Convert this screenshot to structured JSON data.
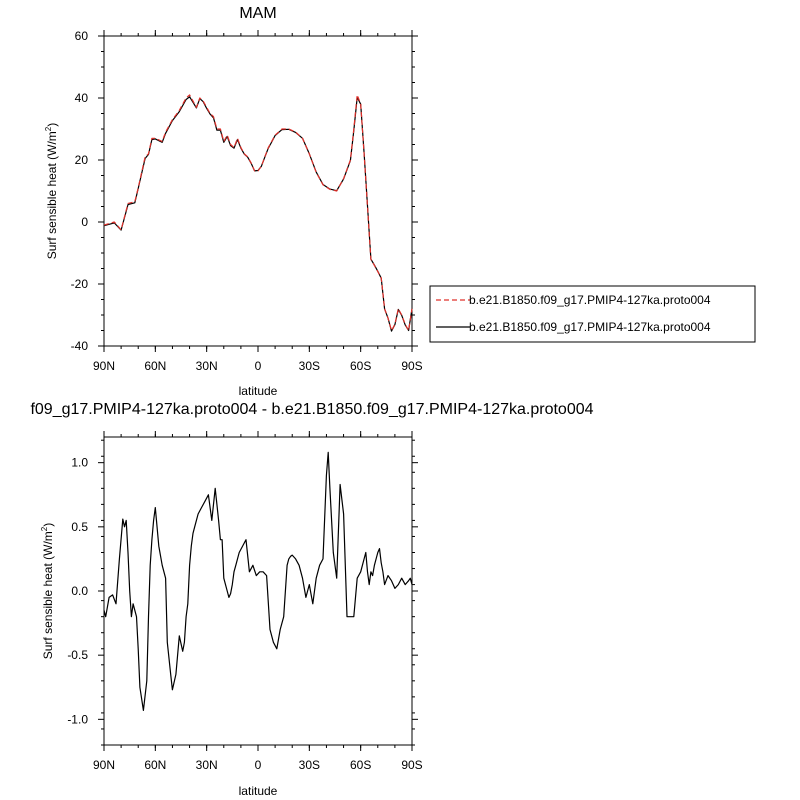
{
  "chart_data": [
    {
      "type": "line",
      "title": "MAM",
      "xlabel": "latitude",
      "ylabel": "Surf sensible heat (W/m",
      "ylabel_sup": "2",
      "ylabel_tail": ")",
      "xlim": [
        90,
        -90
      ],
      "ylim": [
        -40,
        60
      ],
      "yticks": [
        -40,
        -20,
        0,
        20,
        40,
        60
      ],
      "xticks": [
        90,
        60,
        30,
        0,
        -30,
        -60,
        -90
      ],
      "xtick_labels": [
        "90N",
        "60N",
        "30N",
        "0",
        "30S",
        "60S",
        "90S"
      ],
      "legend_position": "right",
      "series": [
        {
          "name": "b.e21.B1850.f09_g17.PMIP4-127ka.proto004",
          "color": "#e0302a",
          "dash": "dashed",
          "x": [
            90,
            84,
            80,
            76,
            72,
            70,
            66,
            64,
            62,
            60,
            56,
            54,
            50,
            46,
            42,
            40,
            38,
            36,
            34,
            32,
            30,
            28,
            26,
            24,
            22,
            20,
            18,
            16,
            14,
            12,
            10,
            8,
            6,
            4,
            2,
            0,
            -2,
            -4,
            -6,
            -8,
            -10,
            -14,
            -18,
            -22,
            -26,
            -30,
            -34,
            -38,
            -42,
            -46,
            -50,
            -54,
            -56,
            -58,
            -60,
            -62,
            -64,
            -66,
            -68,
            -70,
            -72,
            -74,
            -76,
            -78,
            -80,
            -82,
            -84,
            -86,
            -88,
            -90
          ],
          "y": [
            -1.0,
            0,
            -2.5,
            6,
            6.5,
            11,
            21,
            22,
            27,
            27,
            26,
            29,
            33,
            36,
            40,
            41,
            39,
            37,
            40,
            39,
            37,
            35,
            34,
            30,
            30,
            26,
            28,
            25,
            24,
            27,
            24,
            22,
            21,
            19,
            16.5,
            16.5,
            18,
            21,
            24,
            26,
            28,
            30,
            30,
            29,
            27,
            22,
            16,
            12,
            10.5,
            10,
            14,
            20,
            30,
            41,
            38,
            22,
            5,
            -12,
            -14,
            -16,
            -18,
            -28,
            -31,
            -35,
            -33,
            -28,
            -30,
            -33,
            -35,
            -28
          ]
        },
        {
          "name": "b.e21.B1850.f09_g17.PMIP4-127ka.proto004",
          "color": "#000000",
          "dash": "solid",
          "x": [
            90,
            84,
            80,
            76,
            72,
            70,
            66,
            64,
            62,
            60,
            56,
            54,
            50,
            46,
            42,
            40,
            38,
            36,
            34,
            32,
            30,
            28,
            26,
            24,
            22,
            20,
            18,
            16,
            14,
            12,
            10,
            8,
            6,
            4,
            2,
            0,
            -2,
            -4,
            -6,
            -8,
            -10,
            -14,
            -18,
            -22,
            -26,
            -30,
            -34,
            -38,
            -42,
            -46,
            -50,
            -54,
            -56,
            -58,
            -60,
            -62,
            -64,
            -66,
            -68,
            -70,
            -72,
            -74,
            -76,
            -78,
            -80,
            -82,
            -84,
            -86,
            -88,
            -90
          ],
          "y": [
            -1.2,
            -0.3,
            -2.6,
            5.6,
            6.2,
            10.8,
            20.5,
            21.8,
            26.6,
            26.8,
            25.7,
            28.6,
            32.7,
            35.6,
            39.5,
            40.4,
            38.6,
            36.8,
            39.8,
            38.8,
            36.6,
            34.8,
            33.6,
            29.6,
            29.6,
            25.7,
            27.6,
            24.6,
            23.8,
            26.6,
            23.8,
            21.9,
            20.9,
            18.9,
            16.5,
            16.6,
            18.0,
            20.9,
            23.8,
            25.8,
            27.9,
            29.8,
            29.9,
            28.9,
            27.0,
            22.0,
            16.1,
            12.1,
            10.6,
            10.1,
            13.9,
            19.8,
            29.5,
            40.2,
            38.0,
            22.2,
            5.2,
            -12.0,
            -13.9,
            -15.9,
            -18.1,
            -28.1,
            -31.0,
            -35.2,
            -33.1,
            -28.2,
            -30.1,
            -33.2,
            -35.0,
            -28.0
          ]
        }
      ]
    },
    {
      "type": "line",
      "title": "f09_g17.PMIP4-127ka.proto004 - b.e21.B1850.f09_g17.PMIP4-127ka.proto004",
      "xlabel": "latitude",
      "ylabel": "Surf sensible heat (W/m",
      "ylabel_sup": "2",
      "ylabel_tail": ")",
      "xlim": [
        90,
        -90
      ],
      "ylim": [
        -1.2,
        1.2
      ],
      "yticks": [
        -1.0,
        -0.5,
        0.0,
        0.5,
        1.0
      ],
      "ytick_labels": [
        "-1.0",
        "-0.5",
        "0.0",
        "0.5",
        "1.0"
      ],
      "xticks": [
        90,
        60,
        30,
        0,
        -30,
        -60,
        -90
      ],
      "xtick_labels": [
        "90N",
        "60N",
        "30N",
        "0",
        "30S",
        "60S",
        "90S"
      ],
      "series": [
        {
          "color": "#000000",
          "dash": "solid",
          "x": [
            90,
            89,
            87,
            85,
            83,
            81,
            79,
            78,
            77,
            76,
            75,
            74,
            73,
            71,
            70,
            69,
            67,
            65,
            64,
            63,
            62,
            61,
            60,
            58,
            56,
            54,
            53,
            51,
            50,
            48,
            46,
            44,
            43,
            42,
            41,
            40,
            39,
            38,
            37,
            35,
            33,
            31,
            29,
            27,
            25,
            23,
            22,
            21,
            20,
            18,
            17,
            16,
            15,
            14,
            13,
            11,
            9,
            7,
            5,
            3,
            1,
            -1,
            -3,
            -5,
            -7,
            -9,
            -11,
            -13,
            -15,
            -17,
            -18,
            -19,
            -20,
            -22,
            -24,
            -26,
            -28,
            -30,
            -32,
            -34,
            -36,
            -38,
            -40,
            -41,
            -42,
            -44,
            -46,
            -48,
            -50,
            -52,
            -54,
            -56,
            -58,
            -60,
            -62,
            -63,
            -64,
            -65,
            -66,
            -67,
            -68,
            -69,
            -70,
            -71,
            -72,
            -73,
            -74,
            -76,
            -78,
            -80,
            -82,
            -84,
            -86,
            -88,
            -89,
            -90
          ],
          "y": [
            -0.15,
            -0.2,
            -0.05,
            -0.03,
            -0.1,
            0.25,
            0.56,
            0.5,
            0.55,
            0.3,
            0.0,
            -0.2,
            -0.1,
            -0.2,
            -0.45,
            -0.75,
            -0.93,
            -0.7,
            -0.2,
            0.2,
            0.4,
            0.55,
            0.65,
            0.35,
            0.2,
            0.1,
            -0.4,
            -0.65,
            -0.77,
            -0.65,
            -0.35,
            -0.47,
            -0.4,
            -0.2,
            -0.1,
            0.2,
            0.35,
            0.45,
            0.5,
            0.6,
            0.65,
            0.7,
            0.75,
            0.55,
            0.8,
            0.55,
            0.4,
            0.4,
            0.1,
            0.0,
            -0.05,
            -0.02,
            0.05,
            0.15,
            0.2,
            0.3,
            0.35,
            0.4,
            0.15,
            0.2,
            0.12,
            0.15,
            0.15,
            0.12,
            -0.3,
            -0.4,
            -0.45,
            -0.3,
            -0.2,
            0.2,
            0.25,
            0.27,
            0.28,
            0.25,
            0.2,
            0.1,
            -0.05,
            0.05,
            -0.1,
            0.1,
            0.2,
            0.25,
            0.9,
            1.08,
            0.8,
            0.3,
            0.1,
            0.83,
            0.6,
            -0.2,
            -0.2,
            -0.2,
            0.1,
            0.15,
            0.25,
            0.3,
            0.15,
            0.05,
            0.15,
            0.12,
            0.2,
            0.25,
            0.3,
            0.33,
            0.22,
            0.15,
            0.05,
            0.12,
            0.08,
            0.02,
            0.05,
            0.1,
            0.05,
            0.08,
            0.1,
            0.05
          ]
        }
      ]
    }
  ]
}
